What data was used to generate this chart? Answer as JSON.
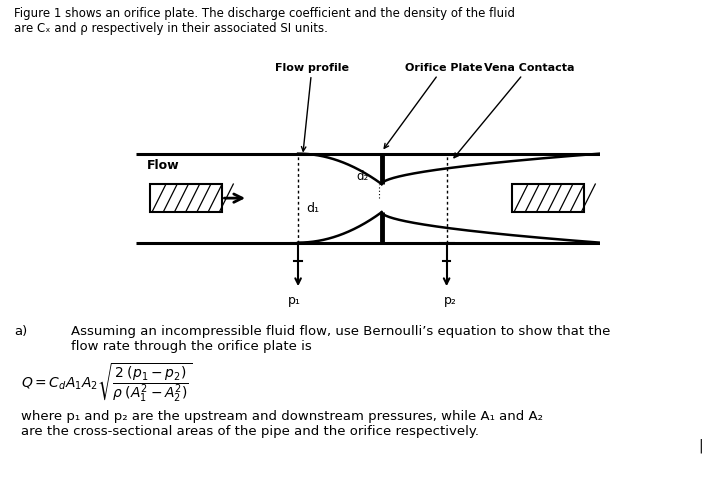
{
  "title_line1": "Figure 1 shows an orifice plate. The discharge coefficient and the density of the fluid",
  "title_line2": "are Cₓ and ρ respectively in their associated SI units.",
  "label_flow_profile": "Flow profile",
  "label_orifice_plate": "Orifice Plate",
  "label_vena_contracta": "Vena Contacta",
  "label_flow": "Flow",
  "label_d1": "d₁",
  "label_d2": "d₂",
  "label_p1": "p₁",
  "label_p2": "p₂",
  "part_a_label": "a)",
  "part_a_text1": "Assuming an incompressible fluid flow, use Bernoulli’s equation to show that the",
  "part_a_text2": "flow rate through the orifice plate is",
  "where_text1": "where p₁ and p₂ are the upstream and downstream pressures, while A₁ and A₂",
  "where_text2": "are the cross-sectional areas of the pipe and the orifice respectively.",
  "bg_color": "#ffffff",
  "line_color": "#000000",
  "text_color": "#000000",
  "fig_width": 7.14,
  "fig_height": 4.85,
  "dpi": 100
}
